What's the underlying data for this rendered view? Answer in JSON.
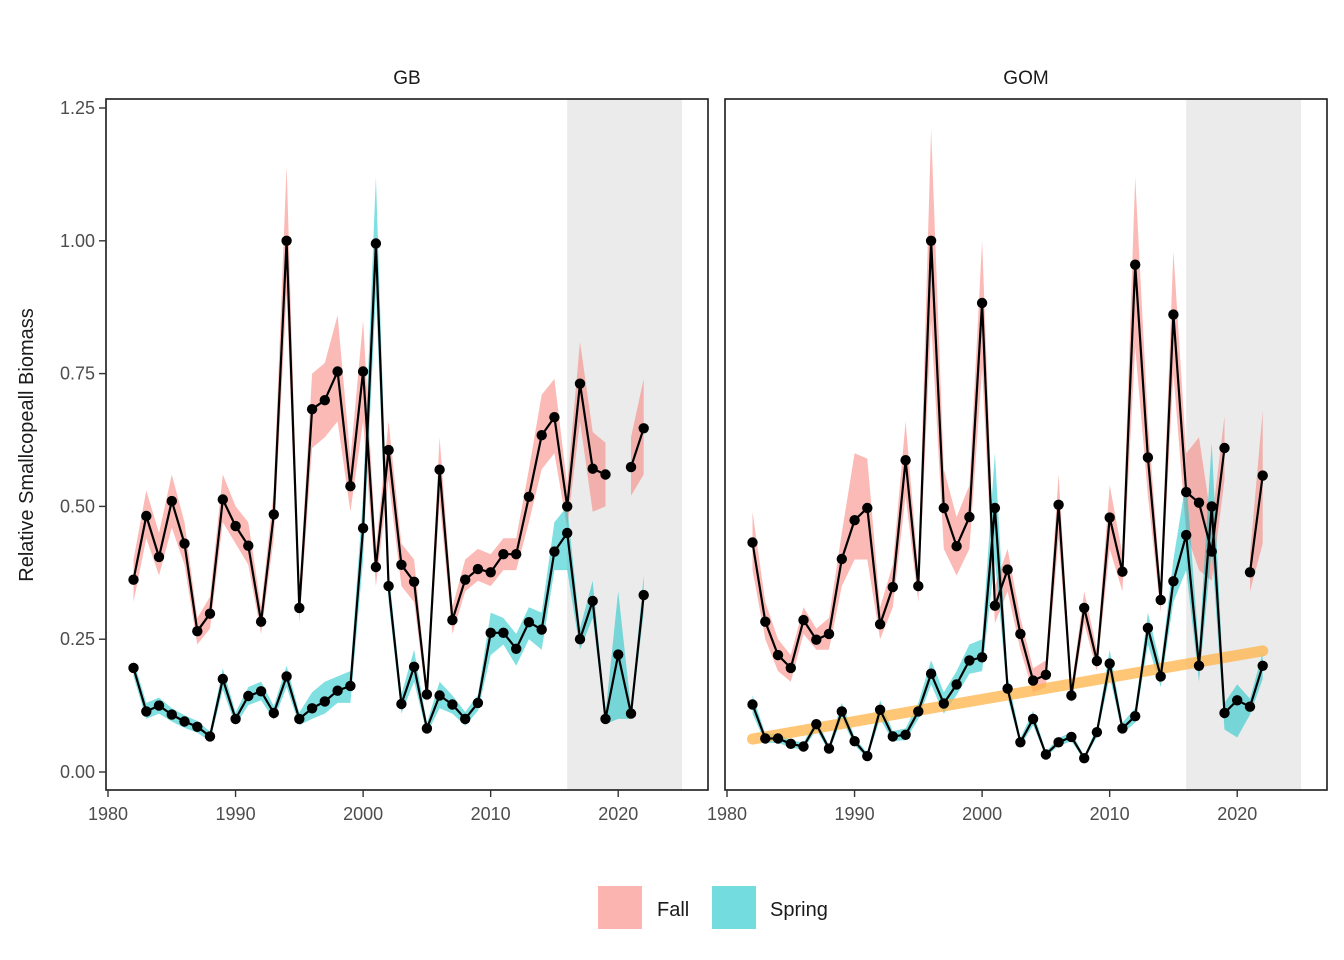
{
  "chart_data": {
    "type": "line",
    "ylabel": "Relative Smallcopeall Biomass",
    "xlabel": "",
    "xlim": [
      1980,
      2025
    ],
    "ylim": [
      0,
      1.25
    ],
    "x_ticks": [
      "1980",
      "1990",
      "2000",
      "2010",
      "2020"
    ],
    "y_ticks": [
      "0.00",
      "0.25",
      "0.50",
      "0.75",
      "1.00",
      "1.25"
    ],
    "shaded_recent_period": [
      2016,
      2025
    ],
    "legend": {
      "position": "bottom",
      "entries": [
        {
          "label": "Fall",
          "color": "#f8766d"
        },
        {
          "label": "Spring",
          "color": "#00bfc4"
        }
      ]
    },
    "colors": {
      "Fall": "#f8766d",
      "Spring": "#00bfc4",
      "trend": "#ffb347",
      "line": "#000000",
      "shade": "#e5e5e5"
    },
    "panels": [
      {
        "title": "GB",
        "series": [
          {
            "name": "Fall",
            "x": [
              1982,
              1983,
              1984,
              1985,
              1986,
              1987,
              1988,
              1989,
              1990,
              1991,
              1992,
              1993,
              1994,
              1995,
              1996,
              1997,
              1998,
              1999,
              2000,
              2001,
              2002,
              2003,
              2004,
              2005,
              2006,
              2007,
              2008,
              2009,
              2010,
              2011,
              2012,
              2013,
              2014,
              2015,
              2016,
              2017,
              2018,
              2019,
              2020,
              2021,
              2022
            ],
            "y": [
              0.362,
              0.482,
              0.405,
              0.51,
              0.43,
              0.265,
              0.298,
              0.513,
              0.463,
              0.426,
              0.283,
              0.485,
              1.0,
              0.309,
              0.683,
              0.7,
              0.754,
              0.538,
              0.754,
              0.386,
              0.606,
              0.39,
              0.358,
              0.146,
              0.569,
              0.286,
              0.362,
              0.382,
              0.376,
              0.41,
              0.41,
              0.518,
              0.634,
              0.668,
              0.5,
              0.731,
              0.571,
              0.56,
              null,
              0.574,
              0.647
            ],
            "lower": [
              0.32,
              0.44,
              0.37,
              0.46,
              0.39,
              0.24,
              0.27,
              0.47,
              0.43,
              0.39,
              0.26,
              0.44,
              0.9,
              0.28,
              0.61,
              0.63,
              0.66,
              0.49,
              0.66,
              0.35,
              0.55,
              0.35,
              0.32,
              0.13,
              0.51,
              0.26,
              0.34,
              0.36,
              0.35,
              0.38,
              0.38,
              0.47,
              0.57,
              0.6,
              0.46,
              0.66,
              0.49,
              0.5,
              null,
              0.52,
              0.56
            ],
            "upper": [
              0.4,
              0.53,
              0.45,
              0.56,
              0.47,
              0.29,
              0.33,
              0.56,
              0.5,
              0.47,
              0.31,
              0.53,
              1.14,
              0.34,
              0.75,
              0.77,
              0.86,
              0.59,
              0.85,
              0.42,
              0.66,
              0.43,
              0.4,
              0.16,
              0.63,
              0.31,
              0.4,
              0.42,
              0.41,
              0.44,
              0.44,
              0.57,
              0.71,
              0.74,
              0.54,
              0.81,
              0.64,
              0.62,
              null,
              0.63,
              0.74
            ]
          },
          {
            "name": "Spring",
            "x": [
              1982,
              1983,
              1984,
              1985,
              1986,
              1987,
              1988,
              1989,
              1990,
              1991,
              1992,
              1993,
              1994,
              1995,
              1996,
              1997,
              1998,
              1999,
              2000,
              2001,
              2002,
              2003,
              2004,
              2005,
              2006,
              2007,
              2008,
              2009,
              2010,
              2011,
              2012,
              2013,
              2014,
              2015,
              2016,
              2017,
              2018,
              2019,
              2020,
              2021,
              2022
            ],
            "y": [
              0.196,
              0.114,
              0.125,
              0.108,
              0.095,
              0.085,
              0.067,
              0.175,
              0.1,
              0.143,
              0.152,
              0.111,
              0.18,
              0.1,
              0.12,
              0.133,
              0.153,
              0.162,
              0.459,
              0.995,
              0.35,
              0.128,
              0.198,
              0.082,
              0.144,
              0.127,
              0.1,
              0.13,
              0.262,
              0.262,
              0.232,
              0.282,
              0.268,
              0.415,
              0.45,
              0.25,
              0.322,
              0.1,
              0.221,
              0.11,
              0.333
            ],
            "lower": [
              0.18,
              0.1,
              0.11,
              0.095,
              0.083,
              0.074,
              0.058,
              0.155,
              0.088,
              0.126,
              0.135,
              0.098,
              0.16,
              0.088,
              0.1,
              0.11,
              0.13,
              0.13,
              0.4,
              0.9,
              0.32,
              0.11,
              0.17,
              0.072,
              0.12,
              0.11,
              0.087,
              0.115,
              0.22,
              0.24,
              0.2,
              0.25,
              0.23,
              0.38,
              0.38,
              0.23,
              0.29,
              0.09,
              0.1,
              0.1,
              0.3
            ],
            "upper": [
              0.21,
              0.13,
              0.14,
              0.12,
              0.107,
              0.096,
              0.076,
              0.195,
              0.112,
              0.16,
              0.17,
              0.124,
              0.2,
              0.112,
              0.15,
              0.17,
              0.18,
              0.19,
              0.52,
              1.12,
              0.38,
              0.146,
              0.23,
              0.092,
              0.17,
              0.144,
              0.113,
              0.145,
              0.3,
              0.29,
              0.26,
              0.31,
              0.3,
              0.47,
              0.5,
              0.27,
              0.36,
              0.11,
              0.34,
              0.12,
              0.37
            ]
          }
        ]
      },
      {
        "title": "GOM",
        "series": [
          {
            "name": "Fall",
            "x": [
              1982,
              1983,
              1984,
              1985,
              1986,
              1987,
              1988,
              1989,
              1990,
              1991,
              1992,
              1993,
              1994,
              1995,
              1996,
              1997,
              1998,
              1999,
              2000,
              2001,
              2002,
              2003,
              2004,
              2005,
              2006,
              2007,
              2008,
              2009,
              2010,
              2011,
              2012,
              2013,
              2014,
              2015,
              2016,
              2017,
              2018,
              2019,
              2020,
              2021,
              2022
            ],
            "y": [
              0.432,
              0.283,
              0.22,
              0.196,
              0.286,
              0.249,
              0.26,
              0.401,
              0.474,
              0.497,
              0.278,
              0.348,
              0.587,
              0.35,
              1.0,
              0.497,
              0.425,
              0.48,
              0.883,
              0.313,
              0.381,
              0.26,
              0.172,
              0.183,
              0.503,
              0.144,
              0.309,
              0.209,
              0.479,
              0.377,
              0.955,
              0.592,
              0.324,
              0.861,
              0.527,
              0.507,
              0.415,
              0.61,
              null,
              0.376,
              0.558
            ],
            "lower": [
              0.38,
              0.25,
              0.19,
              0.17,
              0.26,
              0.23,
              0.23,
              0.35,
              0.4,
              0.4,
              0.25,
              0.31,
              0.52,
              0.32,
              0.85,
              0.42,
              0.37,
              0.42,
              0.76,
              0.28,
              0.34,
              0.23,
              0.15,
              0.16,
              0.44,
              0.13,
              0.28,
              0.19,
              0.42,
              0.34,
              0.8,
              0.52,
              0.3,
              0.75,
              0.45,
              0.38,
              0.36,
              0.55,
              null,
              0.34,
              0.43
            ],
            "upper": [
              0.49,
              0.32,
              0.25,
              0.22,
              0.31,
              0.27,
              0.29,
              0.45,
              0.6,
              0.59,
              0.31,
              0.39,
              0.66,
              0.38,
              1.21,
              0.57,
              0.48,
              0.54,
              1.0,
              0.35,
              0.42,
              0.29,
              0.195,
              0.21,
              0.56,
              0.16,
              0.34,
              0.23,
              0.54,
              0.41,
              1.12,
              0.66,
              0.35,
              0.98,
              0.6,
              0.63,
              0.47,
              0.67,
              null,
              0.41,
              0.68
            ]
          },
          {
            "name": "Spring",
            "x": [
              1982,
              1983,
              1984,
              1985,
              1986,
              1987,
              1988,
              1989,
              1990,
              1991,
              1992,
              1993,
              1994,
              1995,
              1996,
              1997,
              1998,
              1999,
              2000,
              2001,
              2002,
              2003,
              2004,
              2005,
              2006,
              2007,
              2008,
              2009,
              2010,
              2011,
              2012,
              2013,
              2014,
              2015,
              2016,
              2017,
              2018,
              2019,
              2020,
              2021,
              2022
            ],
            "y": [
              0.127,
              0.063,
              0.063,
              0.053,
              0.048,
              0.09,
              0.044,
              0.114,
              0.058,
              0.03,
              0.117,
              0.067,
              0.07,
              0.114,
              0.185,
              0.129,
              0.165,
              0.21,
              0.216,
              0.497,
              0.157,
              0.056,
              0.1,
              0.033,
              0.056,
              0.066,
              0.026,
              0.075,
              0.204,
              0.082,
              0.105,
              0.271,
              0.18,
              0.359,
              0.446,
              0.2,
              0.5,
              0.111,
              0.135,
              0.123,
              0.2
            ],
            "lower": [
              0.11,
              0.055,
              0.055,
              0.046,
              0.042,
              0.08,
              0.038,
              0.1,
              0.05,
              0.026,
              0.1,
              0.058,
              0.06,
              0.1,
              0.165,
              0.11,
              0.145,
              0.185,
              0.19,
              0.4,
              0.14,
              0.049,
              0.088,
              0.029,
              0.049,
              0.058,
              0.022,
              0.066,
              0.18,
              0.072,
              0.093,
              0.24,
              0.16,
              0.32,
              0.38,
              0.17,
              0.42,
              0.08,
              0.065,
              0.108,
              0.175
            ],
            "upper": [
              0.145,
              0.072,
              0.072,
              0.06,
              0.055,
              0.1,
              0.05,
              0.13,
              0.066,
              0.035,
              0.135,
              0.077,
              0.082,
              0.13,
              0.21,
              0.15,
              0.19,
              0.24,
              0.25,
              0.6,
              0.18,
              0.064,
              0.115,
              0.038,
              0.064,
              0.075,
              0.03,
              0.085,
              0.23,
              0.093,
              0.12,
              0.3,
              0.2,
              0.4,
              0.55,
              0.23,
              0.62,
              0.13,
              0.165,
              0.138,
              0.225
            ]
          }
        ],
        "trend": {
          "x": [
            1982,
            2022
          ],
          "y": [
            0.062,
            0.228
          ]
        }
      }
    ]
  }
}
